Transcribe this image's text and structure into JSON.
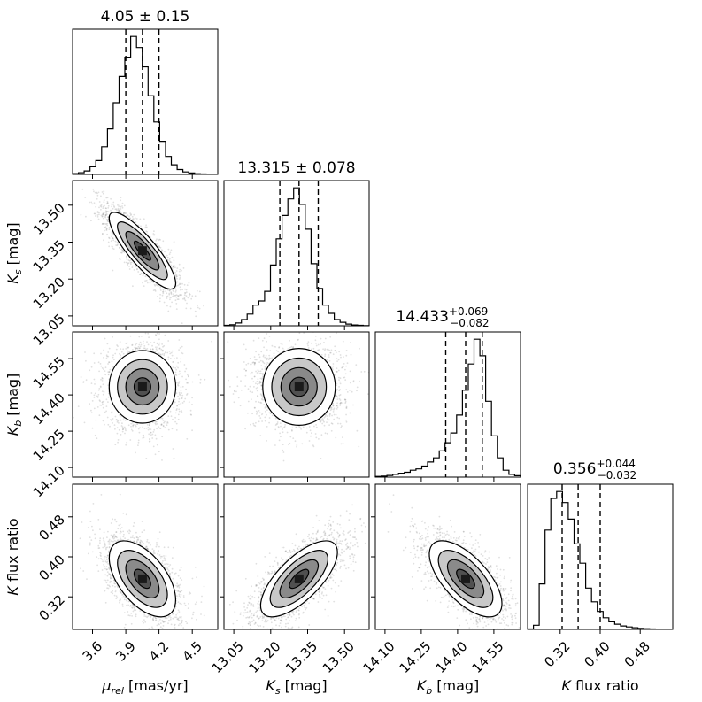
{
  "chart_data": {
    "type": "corner",
    "params": [
      {
        "name": "mu_rel",
        "label_main": "μ",
        "label_sub": "rel",
        "label_rest": " [mas/yr]",
        "range": [
          3.42,
          4.73
        ],
        "ticks": [
          3.6,
          3.9,
          4.2,
          4.5
        ],
        "tick_labels": [
          "3.6",
          "3.9",
          "4.2",
          "4.5"
        ],
        "median": 4.05,
        "q16": 3.9,
        "q84": 4.2,
        "sigma": 0.15
      },
      {
        "name": "Ks",
        "label_main": "K",
        "label_sub": "s",
        "label_rest": " [mag]",
        "range": [
          13.01,
          13.6
        ],
        "ticks": [
          13.05,
          13.2,
          13.35,
          13.5
        ],
        "tick_labels": [
          "13.05",
          "13.20",
          "13.35",
          "13.50"
        ],
        "median": 13.315,
        "q16": 13.237,
        "q84": 13.393,
        "sigma": 0.078
      },
      {
        "name": "Kb",
        "label_main": "K",
        "label_sub": "b",
        "label_rest": " [mag]",
        "range": [
          14.06,
          14.66
        ],
        "ticks": [
          14.1,
          14.25,
          14.4,
          14.55
        ],
        "tick_labels": [
          "14.10",
          "14.25",
          "14.40",
          "14.55"
        ],
        "median": 14.433,
        "q16": 14.351,
        "q84": 14.502,
        "sigma": 0.075
      },
      {
        "name": "Kratio",
        "label_main": "K",
        "label_sub": "",
        "label_rest": " flux ratio",
        "range": [
          0.255,
          0.545
        ],
        "ticks": [
          0.32,
          0.4,
          0.48
        ],
        "tick_labels": [
          "0.32",
          "0.40",
          "0.48"
        ],
        "median": 0.356,
        "q16": 0.324,
        "q84": 0.4,
        "sigma": 0.038
      }
    ],
    "titles": [
      {
        "main": "4.05 ± 0.15"
      },
      {
        "main": "13.315 ± 0.078"
      },
      {
        "main": "14.433",
        "sup": "+0.069",
        "sub": "−0.082"
      },
      {
        "main": "0.356",
        "sup": "+0.044",
        "sub": "−0.032"
      }
    ],
    "histograms": [
      [
        0.6,
        1.2,
        2.5,
        5.5,
        10,
        20,
        33,
        52,
        71,
        85,
        100,
        92,
        78,
        57,
        38,
        24,
        13,
        7,
        3.5,
        1.8,
        1,
        0.5,
        0.3,
        0.2,
        0.1
      ],
      [
        0.3,
        0.8,
        2,
        4.5,
        8.5,
        15,
        18,
        25,
        44,
        63,
        80,
        92,
        100,
        88,
        70,
        45,
        27,
        15,
        9,
        4.5,
        2.5,
        1.2,
        0.6,
        0.3,
        0.1
      ],
      [
        0.5,
        0.7,
        1.2,
        2,
        2.8,
        3.5,
        5,
        6,
        8,
        11,
        14,
        19,
        25,
        32,
        45,
        63,
        82,
        100,
        88,
        55,
        30,
        14,
        5,
        2,
        1
      ],
      [
        0.3,
        3,
        33,
        72,
        95,
        100,
        92,
        80,
        62,
        48,
        30,
        20,
        13,
        8.5,
        5.5,
        3.8,
        2.5,
        1.8,
        1.2,
        0.8,
        0.5,
        0.3,
        0.2,
        0.1,
        0.05
      ]
    ],
    "correlations": [
      [
        1,
        -0.85,
        0.0,
        -0.55
      ],
      [
        -0.85,
        1,
        0.0,
        0.7
      ],
      [
        0.0,
        0.0,
        1,
        -0.65
      ],
      [
        -0.55,
        0.7,
        -0.65,
        1
      ]
    ],
    "colors": {
      "line": "#000000",
      "contour_fills": [
        "#ffffff",
        "#c8c8c8",
        "#8a8a8a",
        "#505050",
        "#1a1a1a"
      ],
      "points": "#555555"
    }
  }
}
